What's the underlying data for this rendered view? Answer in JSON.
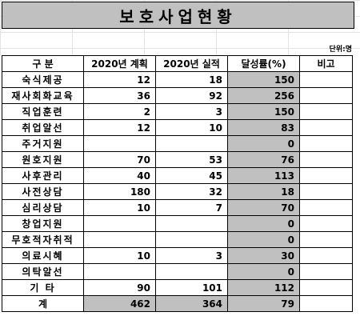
{
  "title": "보호사업현황",
  "unit_label": "단위:명",
  "headers": [
    "구   분",
    "2020년 계획",
    "2020년 실적",
    "달성률(%)",
    "비고"
  ],
  "rows": [
    {
      "category": "숙식제공",
      "plan": "12",
      "actual": "18",
      "rate": "150",
      "note": ""
    },
    {
      "category": "재사회화교육",
      "plan": "36",
      "actual": "92",
      "rate": "256",
      "note": ""
    },
    {
      "category": "직업훈련",
      "plan": "2",
      "actual": "3",
      "rate": "150",
      "note": ""
    },
    {
      "category": "취업알선",
      "plan": "12",
      "actual": "10",
      "rate": "83",
      "note": ""
    },
    {
      "category": "주거지원",
      "plan": "",
      "actual": "",
      "rate": "0",
      "note": ""
    },
    {
      "category": "원호지원",
      "plan": "70",
      "actual": "53",
      "rate": "76",
      "note": ""
    },
    {
      "category": "사후관리",
      "plan": "40",
      "actual": "45",
      "rate": "113",
      "note": ""
    },
    {
      "category": "사전상담",
      "plan": "180",
      "actual": "32",
      "rate": "18",
      "note": ""
    },
    {
      "category": "심리상담",
      "plan": "10",
      "actual": "7",
      "rate": "70",
      "note": ""
    },
    {
      "category": "창업지원",
      "plan": "",
      "actual": "",
      "rate": "0",
      "note": ""
    },
    {
      "category": "무호적자취적",
      "plan": "",
      "actual": "",
      "rate": "0",
      "note": ""
    },
    {
      "category": "의료시혜",
      "plan": "10",
      "actual": "3",
      "rate": "30",
      "note": ""
    },
    {
      "category": "의탁알선",
      "plan": "",
      "actual": "",
      "rate": "0",
      "note": ""
    },
    {
      "category": "기    타",
      "plan": "90",
      "actual": "101",
      "rate": "112",
      "note": ""
    }
  ],
  "total": {
    "category": "계",
    "plan": "462",
    "actual": "364",
    "rate": "79",
    "note": ""
  }
}
